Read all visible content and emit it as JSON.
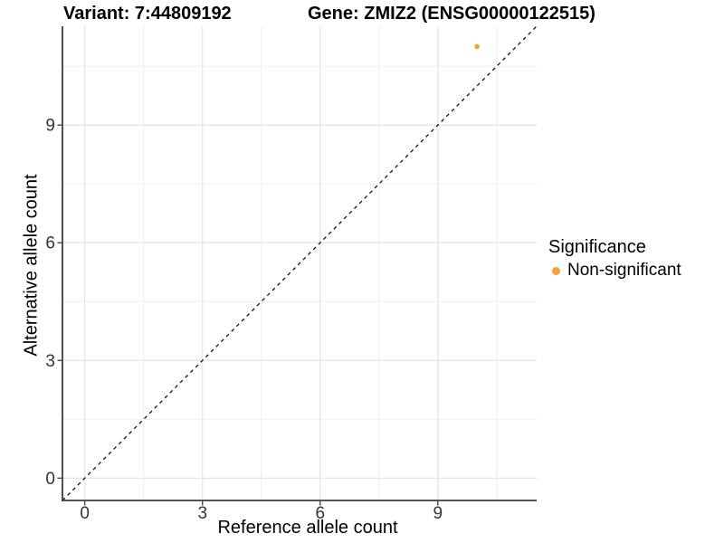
{
  "chart_data": {
    "type": "scatter",
    "title_left": "Variant: 7:44809192",
    "title_right": "Gene: ZMIZ2 (ENSG00000122515)",
    "xlabel": "Reference allele count",
    "ylabel": "Alternative allele count",
    "x_ticks": [
      0,
      3,
      6,
      9
    ],
    "y_ticks": [
      0,
      3,
      6,
      9
    ],
    "minor_ticks": [
      1.5,
      4.5,
      7.5,
      10.5
    ],
    "xlim": [
      -0.57,
      11.52
    ],
    "ylim": [
      -0.57,
      11.52
    ],
    "grid": true,
    "reference_line": {
      "kind": "identity",
      "style": "dashed",
      "color": "#111111"
    },
    "series": [
      {
        "name": "Non-significant",
        "color": "#F9A032",
        "points": [
          {
            "x": 10,
            "y": 11
          }
        ]
      }
    ],
    "legend": {
      "title": "Significance",
      "position": "right",
      "items": [
        {
          "label": "Non-significant",
          "color": "#F9A032"
        }
      ]
    },
    "colors": {
      "point_orange": "#F9A032",
      "grid_major": "#E3E3E3",
      "grid_minor": "#EEEEEE",
      "axis_line": "#3C3C3C",
      "tick_text": "#333333"
    }
  }
}
